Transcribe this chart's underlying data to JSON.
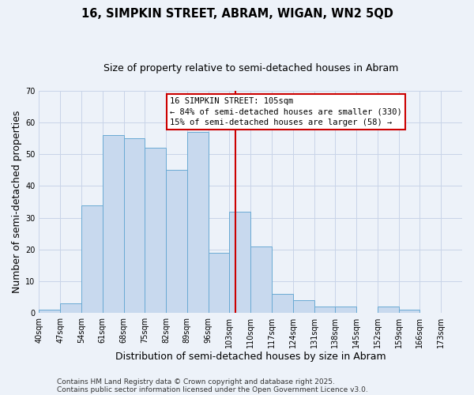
{
  "title": "16, SIMPKIN STREET, ABRAM, WIGAN, WN2 5QD",
  "subtitle": "Size of property relative to semi-detached houses in Abram",
  "xlabel": "Distribution of semi-detached houses by size in Abram",
  "ylabel": "Number of semi-detached properties",
  "bin_edges": [
    40,
    47,
    54,
    61,
    68,
    75,
    82,
    89,
    96,
    103,
    110,
    117,
    124,
    131,
    138,
    145,
    152,
    159,
    166,
    173,
    180
  ],
  "bar_heights": [
    1,
    3,
    34,
    56,
    55,
    52,
    45,
    57,
    19,
    32,
    21,
    6,
    4,
    2,
    2,
    0,
    2,
    1,
    0,
    0
  ],
  "bar_color": "#c8d9ee",
  "bar_edgecolor": "#6aaad4",
  "grid_color": "#c8d4e8",
  "background_color": "#edf2f9",
  "vline_x": 105,
  "vline_color": "#cc0000",
  "ylim": [
    0,
    70
  ],
  "legend_title": "16 SIMPKIN STREET: 105sqm",
  "legend_line1": "← 84% of semi-detached houses are smaller (330)",
  "legend_line2": "15% of semi-detached houses are larger (58) →",
  "footer1": "Contains HM Land Registry data © Crown copyright and database right 2025.",
  "footer2": "Contains public sector information licensed under the Open Government Licence v3.0.",
  "title_fontsize": 10.5,
  "subtitle_fontsize": 9,
  "axis_label_fontsize": 9,
  "tick_fontsize": 7,
  "legend_fontsize": 7.5,
  "footer_fontsize": 6.5
}
